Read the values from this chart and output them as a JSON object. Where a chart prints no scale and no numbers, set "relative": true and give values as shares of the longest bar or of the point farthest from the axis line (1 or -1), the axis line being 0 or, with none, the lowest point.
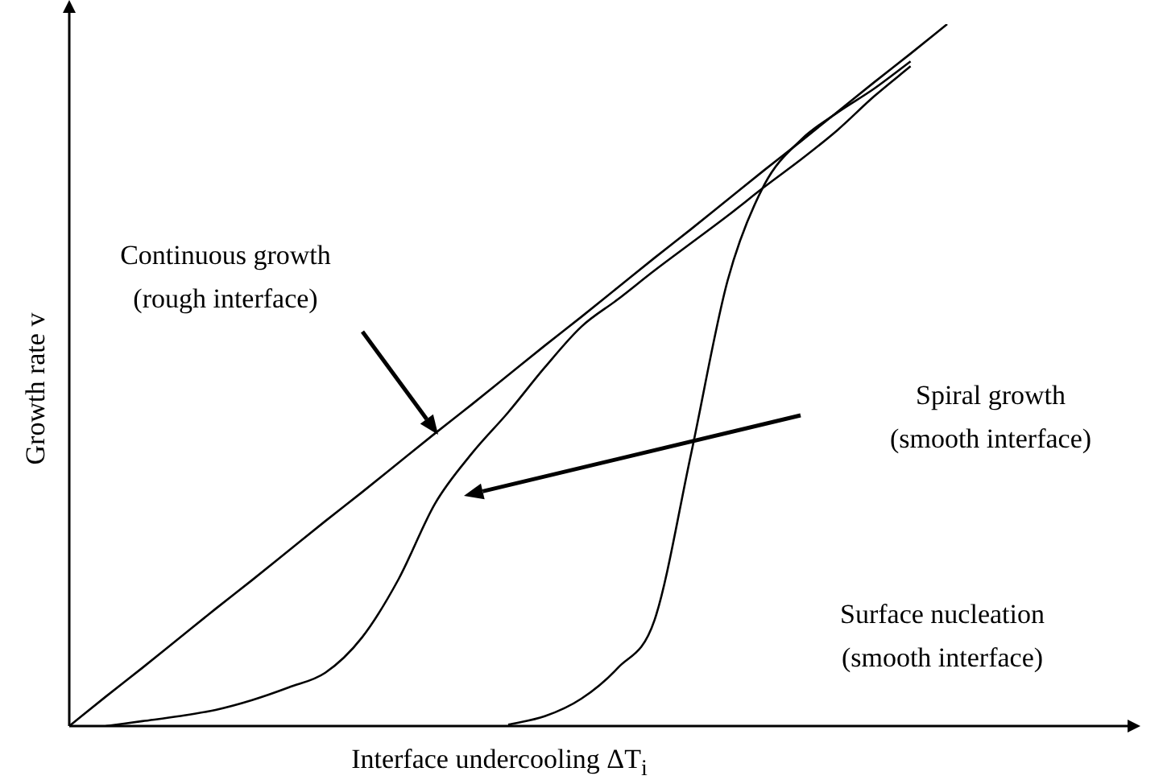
{
  "chart_data": {
    "type": "line",
    "relative": true,
    "xlabel": "Interface undercooling ΔT$_{i}$",
    "ylabel": "Growth rate v",
    "marker": "none",
    "legend": false,
    "categories": [
      null,
      null,
      null,
      null,
      null,
      null,
      null,
      null,
      null,
      null,
      null,
      null,
      null,
      null,
      null,
      null,
      null,
      null,
      null,
      null,
      null,
      null,
      null,
      null,
      null
    ],
    "series": [
      {
        "color": "#000000",
        "values": [
          0,
          0.042,
          0.083,
          0.125,
          0.167,
          0.208,
          0.25,
          0.292,
          0.333,
          0.375,
          0.417,
          0.458,
          0.5,
          0.542,
          0.583,
          0.625,
          0.667,
          0.708,
          0.75,
          0.792,
          0.833,
          0.875,
          0.917,
          0.958,
          1
        ]
      },
      {
        "color": "#000000",
        "values": [
          null,
          0,
          0.007,
          0.014,
          0.023,
          0.037,
          0.055,
          0.076,
          0.126,
          0.209,
          0.317,
          0.388,
          0.447,
          0.511,
          0.569,
          0.608,
          0.649,
          0.688,
          0.727,
          0.768,
          0.807,
          0.849,
          0.897,
          0.94,
          null
        ]
      },
      {
        "color": "#000000",
        "values": [
          null,
          null,
          null,
          null,
          null,
          null,
          null,
          null,
          null,
          null,
          null,
          null,
          0.002,
          0.014,
          0.039,
          0.083,
          0.151,
          0.388,
          0.635,
          0.771,
          0.835,
          0.874,
          0.908,
          0.947,
          null
        ]
      }
    ],
    "annotations": [
      "Continuous growth\n(rough interface)",
      "Spiral growth\n(smooth interface)",
      "Surface nucleation\n(smooth interface)"
    ]
  }
}
